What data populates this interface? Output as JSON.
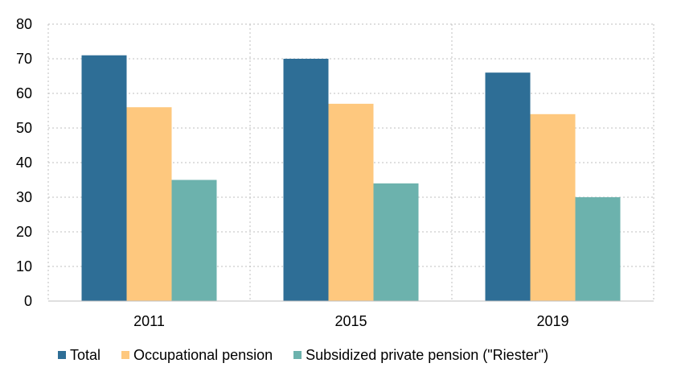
{
  "chart_data": {
    "type": "bar",
    "categories": [
      "2011",
      "2015",
      "2019"
    ],
    "series": [
      {
        "name": "Total",
        "values": [
          71,
          70,
          66
        ],
        "color": "#2e6e96"
      },
      {
        "name": "Occupational pension",
        "values": [
          56,
          57,
          54
        ],
        "color": "#fec87e"
      },
      {
        "name": "Subsidized private pension (\"Riester\")",
        "values": [
          35,
          34,
          30
        ],
        "color": "#6cb2ad"
      }
    ],
    "y_ticks": [
      "0",
      "10",
      "20",
      "30",
      "40",
      "50",
      "60",
      "70",
      "80"
    ],
    "ylim": [
      0,
      80
    ],
    "grid": true,
    "legend_position": "bottom"
  }
}
